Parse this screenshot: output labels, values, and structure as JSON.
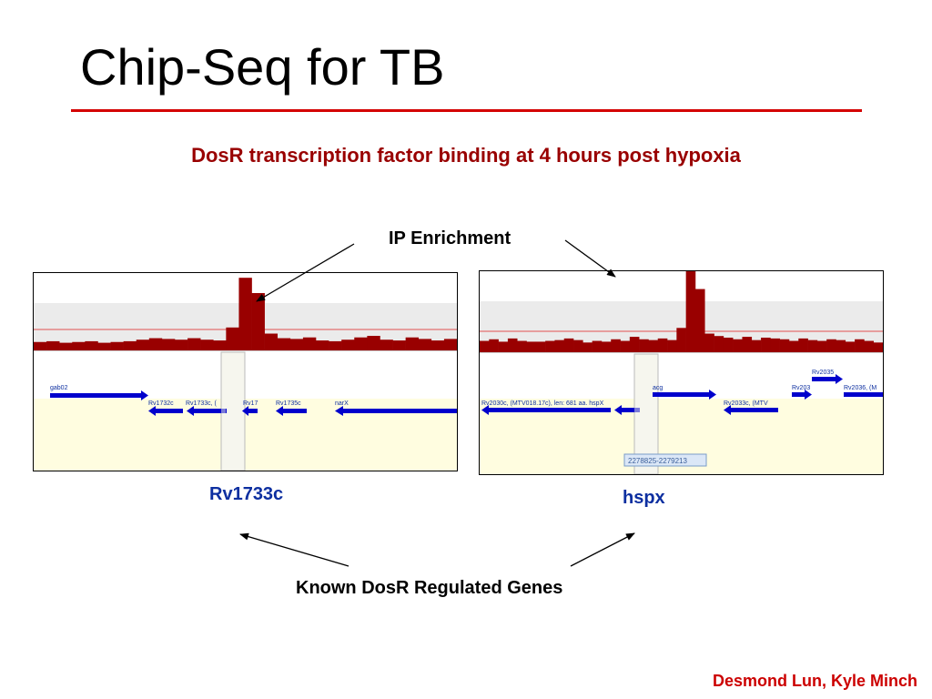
{
  "slide": {
    "title": "Chip-Seq for TB",
    "subtitle": "DosR transcription factor binding at 4 hours post hypoxia",
    "ip_label": "IP Enrichment",
    "known_label": "Known DosR Regulated Genes",
    "credit": "Desmond Lun, Kyle Minch"
  },
  "colors": {
    "title_rule": "#d40000",
    "subtitle": "#990000",
    "peak": "#990000",
    "gene_arrow": "#0000cc",
    "gene_label": "#0d2fa0",
    "track_bg": "#fffde0",
    "credit": "#cc0000"
  },
  "left_panel": {
    "gene_name": "Rv1733c",
    "genes": [
      "gab02",
      "Rv1732c",
      "Rv1733c, (",
      "Rv17",
      "Rv1735c",
      "narX"
    ],
    "peak_heights": [
      0.11,
      0.12,
      0.1,
      0.11,
      0.12,
      0.1,
      0.11,
      0.12,
      0.14,
      0.16,
      0.15,
      0.14,
      0.16,
      0.14,
      0.13,
      0.3,
      0.95,
      0.75,
      0.22,
      0.16,
      0.15,
      0.17,
      0.13,
      0.12,
      0.14,
      0.17,
      0.19,
      0.14,
      0.13,
      0.17,
      0.15,
      0.13,
      0.15
    ]
  },
  "right_panel": {
    "gene_name": "hspx",
    "genes": [
      "Rv2030c, (MTV018.17c), len: 681 aa. hspX",
      "acg",
      "Rv2033c, (MTV",
      "Rv203",
      "Rv2035",
      "Rv2036, (M"
    ],
    "coordinate_tooltip": "2278825-2279213",
    "peak_heights": [
      0.14,
      0.16,
      0.13,
      0.17,
      0.14,
      0.13,
      0.13,
      0.14,
      0.15,
      0.17,
      0.15,
      0.12,
      0.14,
      0.13,
      0.16,
      0.14,
      0.19,
      0.16,
      0.15,
      0.17,
      0.15,
      0.3,
      1.0,
      0.78,
      0.23,
      0.2,
      0.18,
      0.16,
      0.19,
      0.15,
      0.18,
      0.17,
      0.16,
      0.14,
      0.17,
      0.15,
      0.14,
      0.16,
      0.15,
      0.13,
      0.16,
      0.14,
      0.12
    ]
  }
}
